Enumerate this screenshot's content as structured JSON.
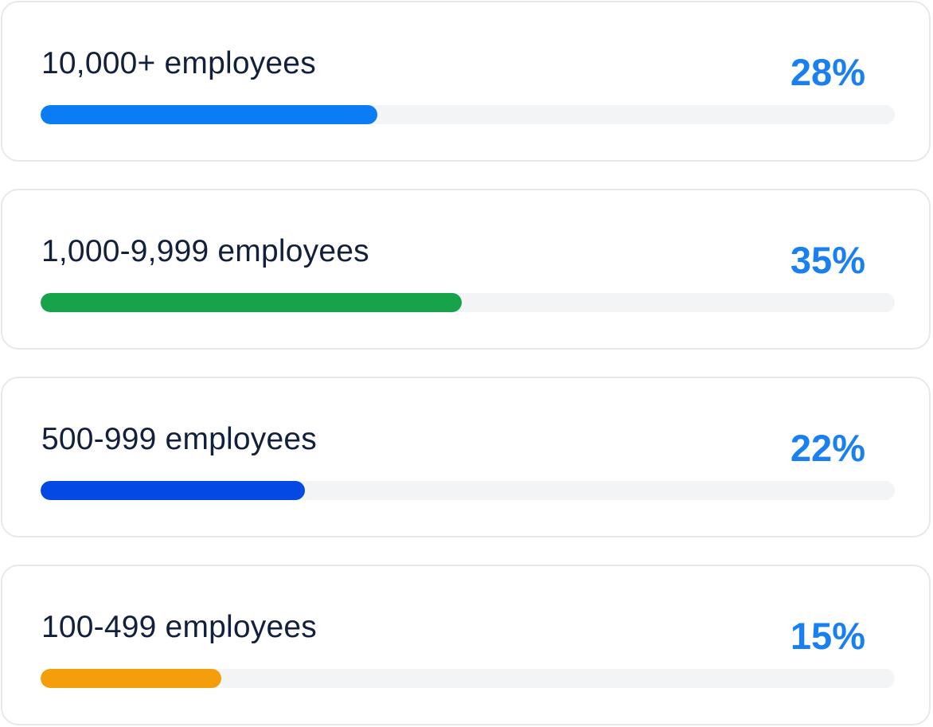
{
  "chart_data": {
    "type": "bar",
    "orientation": "horizontal",
    "categories": [
      "10,000+ employees",
      "1,000-9,999 employees",
      "500-999 employees",
      "100-499 employees"
    ],
    "values": [
      28,
      35,
      22,
      15
    ],
    "value_labels": [
      "28%",
      "35%",
      "22%",
      "15%"
    ],
    "bar_colors": [
      "#0a7df5",
      "#16a34a",
      "#0449e3",
      "#f59e0b"
    ],
    "value_color": "#1a7ff0",
    "track_color": "#f3f4f6",
    "xlim": [
      0,
      71
    ]
  }
}
